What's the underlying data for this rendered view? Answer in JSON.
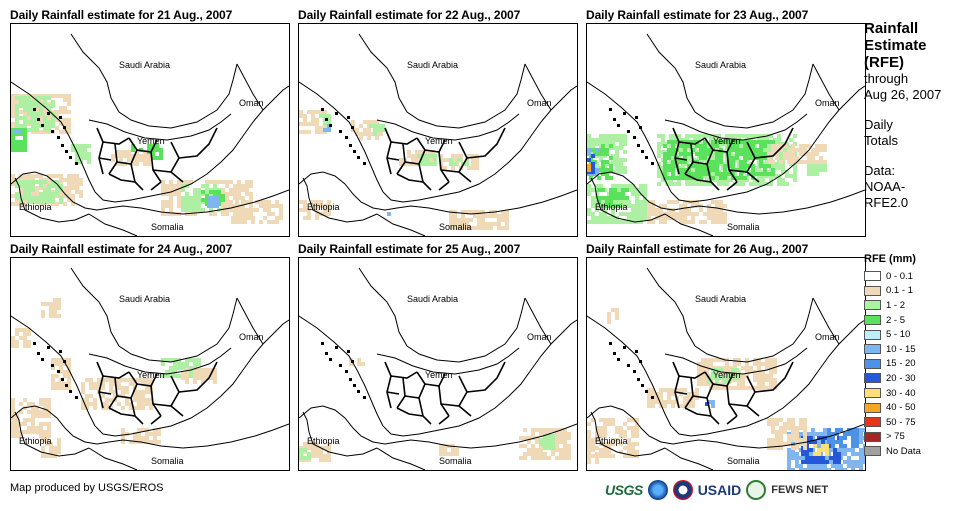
{
  "panels": [
    {
      "title": "Daily Rainfall estimate for 21 Aug., 2007"
    },
    {
      "title": "Daily Rainfall estimate for 22 Aug., 2007"
    },
    {
      "title": "Daily Rainfall estimate for 23 Aug., 2007"
    },
    {
      "title": "Daily Rainfall estimate for 24 Aug., 2007"
    },
    {
      "title": "Daily Rainfall estimate for 25 Aug., 2007"
    },
    {
      "title": "Daily Rainfall estimate for 26 Aug., 2007"
    }
  ],
  "map_labels": {
    "saudi_arabia": "Saudi Arabia",
    "oman": "Oman",
    "yemen": "Yemen",
    "ethiopia": "Ethiopia",
    "somalia": "Somalia"
  },
  "side_panel": {
    "title": "Rainfall Estimate (RFE)",
    "through": "through",
    "date": "Aug 26, 2007",
    "daily_totals": "Daily Totals",
    "data_label": "Data:",
    "data_source": "NOAA-RFE2.0"
  },
  "legend": {
    "title": "RFE (mm)",
    "items": [
      {
        "label": "0 - 0.1",
        "color": "#ffffff"
      },
      {
        "label": "0.1 - 1",
        "color": "#efd9b7"
      },
      {
        "label": "1 - 2",
        "color": "#aef0a3"
      },
      {
        "label": "2 - 5",
        "color": "#5ae25c"
      },
      {
        "label": "5 - 10",
        "color": "#bdeefa"
      },
      {
        "label": "10 - 15",
        "color": "#7fb6ef"
      },
      {
        "label": "15 - 20",
        "color": "#4c93e8"
      },
      {
        "label": "20 - 30",
        "color": "#2458d8"
      },
      {
        "label": "30 - 40",
        "color": "#fbe07a"
      },
      {
        "label": "40 - 50",
        "color": "#f5a623"
      },
      {
        "label": "50 - 75",
        "color": "#e8331c"
      },
      {
        "label": "> 75",
        "color": "#a82424"
      },
      {
        "label": "No Data",
        "color": "#a0a0a0"
      }
    ]
  },
  "credit": "Map produced by USGS/EROS",
  "logos": {
    "usgs": "USGS",
    "usaid": "USAID",
    "fews": "FEWS NET"
  }
}
